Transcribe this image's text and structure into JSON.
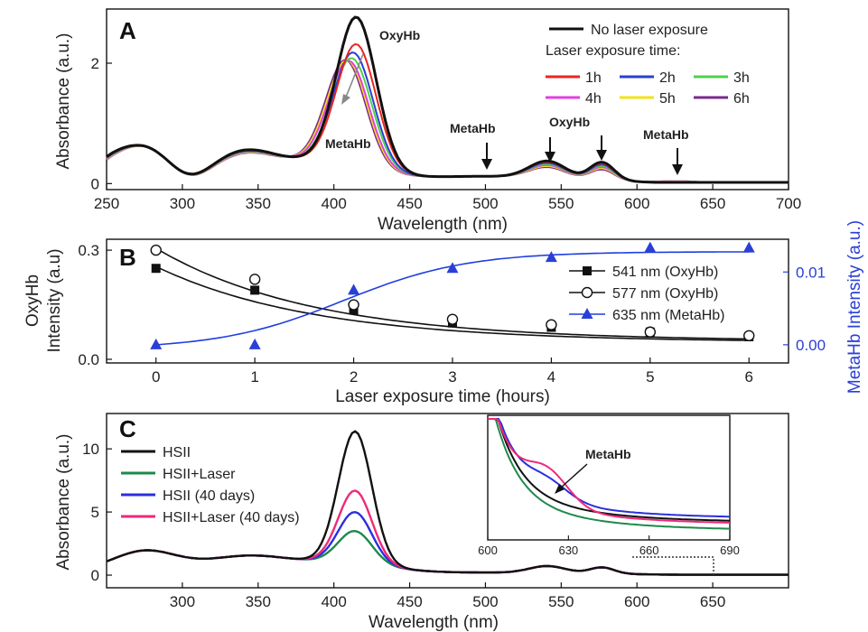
{
  "chart_data": [
    {
      "panel": "A",
      "type": "line",
      "xlabel": "Wavelength (nm)",
      "ylabel": "Absorbance (a.u.)",
      "xlim": [
        250,
        700
      ],
      "ylim": [
        -0.1,
        2.9
      ],
      "xticks": [
        250,
        300,
        350,
        400,
        450,
        500,
        550,
        600,
        650,
        700
      ],
      "yticks": [
        0,
        2
      ],
      "legend": {
        "entries": [
          "No laser exposure"
        ],
        "subheading": "Laser exposure time:",
        "time_entries": [
          "1h",
          "2h",
          "3h",
          "4h",
          "5h",
          "6h"
        ],
        "placement": "top-right"
      },
      "annotations": [
        "OxyHb",
        "MetaHb",
        "MetaHb",
        "OxyHb",
        "MetaHb"
      ],
      "series": [
        {
          "name": "No laser exposure",
          "color": "#111111",
          "peak": 2.8,
          "soret": 415
        },
        {
          "name": "1h",
          "color": "#e8261f",
          "peak": 2.35,
          "soret": 415
        },
        {
          "name": "2h",
          "color": "#2a3fd6",
          "peak": 2.2,
          "soret": 413
        },
        {
          "name": "3h",
          "color": "#4fd14f",
          "peak": 2.1,
          "soret": 412
        },
        {
          "name": "4h",
          "color": "#e040e0",
          "peak": 2.05,
          "soret": 410
        },
        {
          "name": "5h",
          "color": "#f2e21a",
          "peak": 2.05,
          "soret": 409
        },
        {
          "name": "6h",
          "color": "#7a2a8c",
          "peak": 2.05,
          "soret": 408
        }
      ]
    },
    {
      "panel": "B",
      "type": "line",
      "xlabel": "Laser exposure time (hours)",
      "ylabel": "OxyHb Intensity (a.u)",
      "ylabel_lines": [
        "OxyHb",
        "Intensity (a.u)"
      ],
      "y2label": "MetaHb Intensity (a.u.)",
      "xlim": [
        -0.5,
        6.4
      ],
      "ylim": [
        -0.01,
        0.33
      ],
      "y2lim": [
        -0.0025,
        0.0145
      ],
      "xticks": [
        0,
        1,
        2,
        3,
        4,
        5,
        6
      ],
      "yticks": [
        0.0,
        0.3
      ],
      "ytick_labels": [
        "0.0",
        "0.3"
      ],
      "y2ticks": [
        0.0,
        0.01
      ],
      "y2tick_labels": [
        "0.00",
        "0.01"
      ],
      "x": [
        0,
        1,
        2,
        3,
        4,
        5,
        6
      ],
      "series": [
        {
          "name": "541 nm (OxyHb)",
          "values": [
            0.25,
            0.19,
            0.135,
            0.1,
            0.088,
            0.075,
            0.062
          ],
          "axis": "left",
          "marker": "filled-square",
          "color": "#111111"
        },
        {
          "name": "577 nm (OxyHb)",
          "values": [
            0.3,
            0.22,
            0.15,
            0.11,
            0.095,
            0.075,
            0.065
          ],
          "axis": "left",
          "marker": "open-circle",
          "color": "#111111"
        },
        {
          "name": "635 nm (MetaHb)",
          "values": [
            0.0,
            0.0,
            0.0075,
            0.0105,
            0.012,
            0.0133,
            0.0133
          ],
          "axis": "right",
          "marker": "filled-triangle",
          "color": "#1f3fe0"
        }
      ],
      "legend_placement": "right"
    },
    {
      "panel": "C",
      "type": "line",
      "xlabel": "Wavelength (nm)",
      "ylabel": "Absorbance (a.u.)",
      "xlim": [
        250,
        700
      ],
      "ylim": [
        -1,
        12.8
      ],
      "xticks": [
        300,
        350,
        400,
        450,
        500,
        550,
        600,
        650
      ],
      "yticks": [
        0,
        5,
        10
      ],
      "legend_placement": "top-left",
      "series": [
        {
          "name": "HSII",
          "color": "#111111",
          "peak": 11.2
        },
        {
          "name": "HSII+Laser",
          "color": "#1e8a4a",
          "peak": 3.3
        },
        {
          "name": "HSII (40 days)",
          "color": "#2a2fe0",
          "peak": 4.8
        },
        {
          "name": "HSII+Laser (40 days)",
          "color": "#ee2a7b",
          "peak": 6.5
        }
      ],
      "inset": {
        "xlim": [
          600,
          690
        ],
        "xticks": [
          600,
          630,
          660,
          690
        ],
        "annotation": "MetaHb"
      }
    }
  ]
}
